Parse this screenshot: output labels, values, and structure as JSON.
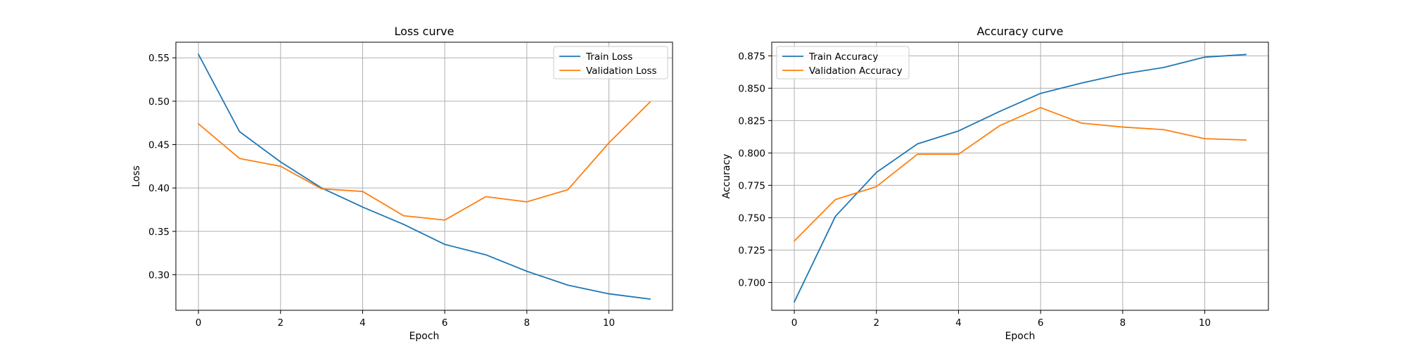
{
  "chart_data": [
    {
      "type": "line",
      "title": "Loss curve",
      "xlabel": "Epoch",
      "ylabel": "Loss",
      "xlim": [
        -0.55,
        11.55
      ],
      "ylim": [
        0.259,
        0.568
      ],
      "x_ticks": [
        0,
        2,
        4,
        6,
        8,
        10
      ],
      "x_tick_labels": [
        "0",
        "2",
        "4",
        "6",
        "8",
        "10"
      ],
      "y_ticks": [
        0.3,
        0.35,
        0.4,
        0.45,
        0.5,
        0.55
      ],
      "y_tick_labels": [
        "0.30",
        "0.35",
        "0.40",
        "0.45",
        "0.50",
        "0.55"
      ],
      "grid": true,
      "legend_position": "top-right",
      "x": [
        0,
        1,
        2,
        3,
        4,
        5,
        6,
        7,
        8,
        9,
        10,
        11
      ],
      "series": [
        {
          "name": "Train Loss",
          "color": "#1f77b4",
          "values": [
            0.554,
            0.465,
            0.43,
            0.4,
            0.378,
            0.358,
            0.335,
            0.323,
            0.304,
            0.288,
            0.278,
            0.272
          ]
        },
        {
          "name": "Validation Loss",
          "color": "#ff7f0e",
          "values": [
            0.474,
            0.434,
            0.425,
            0.399,
            0.396,
            0.368,
            0.363,
            0.39,
            0.384,
            0.398,
            0.452,
            0.499
          ]
        }
      ]
    },
    {
      "type": "line",
      "title": "Accuracy curve",
      "xlabel": "Epoch",
      "ylabel": "Accuracy",
      "xlim": [
        -0.55,
        11.55
      ],
      "ylim": [
        0.6785,
        0.8855
      ],
      "x_ticks": [
        0,
        2,
        4,
        6,
        8,
        10
      ],
      "x_tick_labels": [
        "0",
        "2",
        "4",
        "6",
        "8",
        "10"
      ],
      "y_ticks": [
        0.7,
        0.725,
        0.75,
        0.775,
        0.8,
        0.825,
        0.85,
        0.875
      ],
      "y_tick_labels": [
        "0.700",
        "0.725",
        "0.750",
        "0.775",
        "0.800",
        "0.825",
        "0.850",
        "0.875"
      ],
      "grid": true,
      "legend_position": "top-left",
      "x": [
        0,
        1,
        2,
        3,
        4,
        5,
        6,
        7,
        8,
        9,
        10,
        11
      ],
      "series": [
        {
          "name": "Train Accuracy",
          "color": "#1f77b4",
          "values": [
            0.685,
            0.751,
            0.785,
            0.807,
            0.817,
            0.832,
            0.846,
            0.854,
            0.861,
            0.866,
            0.874,
            0.876
          ]
        },
        {
          "name": "Validation Accuracy",
          "color": "#ff7f0e",
          "values": [
            0.732,
            0.764,
            0.774,
            0.799,
            0.799,
            0.821,
            0.835,
            0.823,
            0.82,
            0.818,
            0.811,
            0.81
          ]
        }
      ]
    }
  ]
}
